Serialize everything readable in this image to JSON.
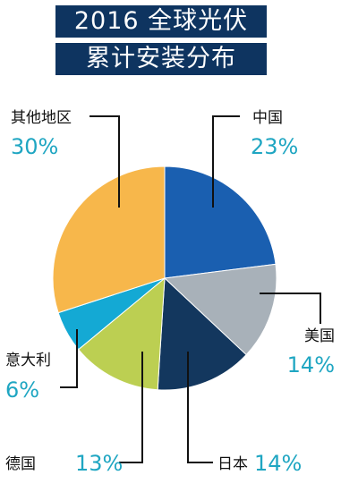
{
  "title_lines": [
    "2016 全球光伏",
    "累计安装分布"
  ],
  "chart_data": {
    "type": "pie",
    "title": "2016 全球光伏 累计安装分布",
    "slices": [
      {
        "label": "中国",
        "value": 23,
        "value_label": "23%",
        "color": "#1a5fb0"
      },
      {
        "label": "美国",
        "value": 14,
        "value_label": "14%",
        "color": "#a8b1b9"
      },
      {
        "label": "日本",
        "value": 14,
        "value_label": "14%",
        "color": "#13375e"
      },
      {
        "label": "德国",
        "value": 13,
        "value_label": "13%",
        "color": "#bccf52"
      },
      {
        "label": "意大利",
        "value": 6,
        "value_label": "6%",
        "color": "#14a9d4"
      },
      {
        "label": "其他地区",
        "value": 30,
        "value_label": "30%",
        "color": "#f7b74b"
      }
    ]
  }
}
